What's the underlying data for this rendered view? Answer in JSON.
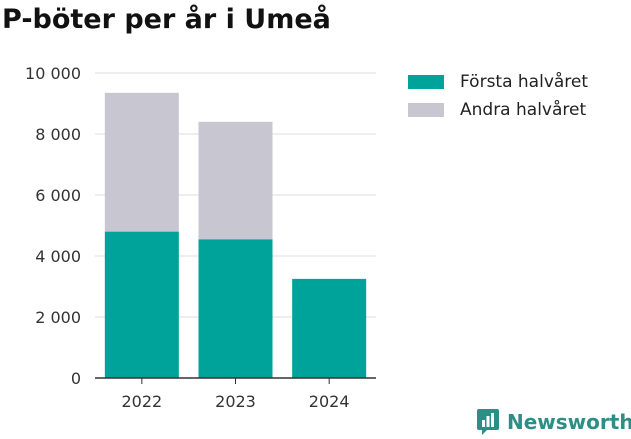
{
  "title": "P-böter per år i Umeå",
  "chart_data": {
    "type": "bar",
    "stacked": true,
    "categories": [
      "2022",
      "2023",
      "2024"
    ],
    "series": [
      {
        "name": "Första halvåret",
        "color": "#00a39a",
        "values": [
          4800,
          4550,
          3250
        ]
      },
      {
        "name": "Andra halvåret",
        "color": "#c7c6d1",
        "values": [
          4550,
          3850,
          0
        ]
      }
    ],
    "yticks": [
      "0",
      "2 000",
      "4 000",
      "6 000",
      "8 000",
      "10 000"
    ],
    "ylim": [
      0,
      10000
    ],
    "grid": true,
    "legend_position": "top-right"
  },
  "legend": {
    "items": [
      {
        "label": "Första halvåret",
        "color": "#00a39a"
      },
      {
        "label": "Andra halvåret",
        "color": "#c7c6d1"
      }
    ]
  },
  "brand": {
    "name": "Newsworthy",
    "icon": "newsworthy-logo-icon",
    "color": "#2c8f86"
  }
}
